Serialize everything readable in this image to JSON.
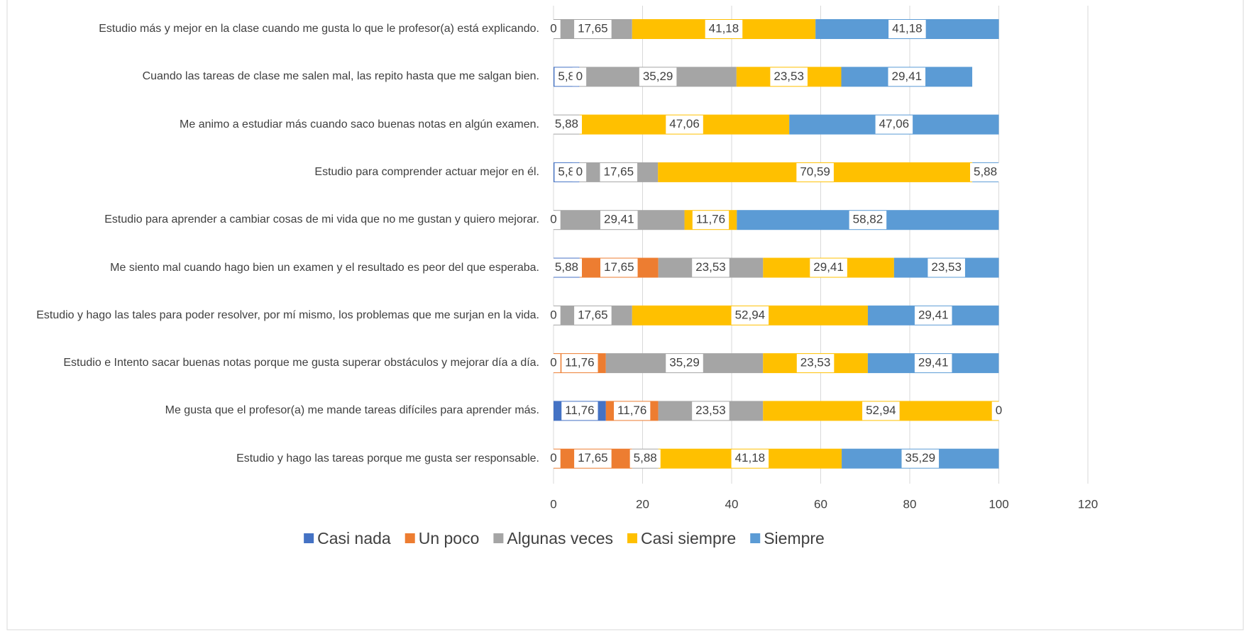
{
  "chart_data": {
    "type": "stacked_barh",
    "categories": [
      "Estudio más y mejor en la clase cuando me gusta lo que le profesor(a) está explicando.",
      "Cuando las tareas de clase me salen mal, las repito hasta que me salgan bien.",
      "Me animo a estudiar más cuando saco buenas notas en algún examen.",
      "Estudio para comprender actuar mejor en él.",
      "Estudio para aprender a cambiar cosas de mi vida que no me gustan y quiero mejorar.",
      "Me siento mal cuando hago bien un examen y el resultado es peor del que esperaba.",
      "Estudio y hago las tales para poder resolver, por mí mismo, los problemas que me surjan en la vida.",
      "Estudio e Intento sacar buenas notas porque me gusta superar obstáculos y mejorar día a día.",
      "Me gusta que el profesor(a) me mande tareas difíciles para aprender más.",
      "Estudio y hago las tareas porque me gusta ser responsable."
    ],
    "series": [
      {
        "name": "Casi nada",
        "color": "#4472c4",
        "values": [
          0,
          5.8,
          null,
          5.8,
          0,
          5.88,
          0,
          0,
          11.76,
          0
        ],
        "value_labels": [
          "0",
          "5,8",
          null,
          "5,8",
          "0",
          "5,88",
          "0",
          "0",
          "11,76",
          "0"
        ]
      },
      {
        "name": "Un poco",
        "color": "#ed7d31",
        "values": [
          null,
          0,
          null,
          0,
          null,
          17.65,
          null,
          11.76,
          11.76,
          17.65
        ],
        "value_labels": [
          null,
          "0",
          null,
          "0",
          null,
          "17,65",
          null,
          "11,76",
          "11,76",
          "17,65"
        ]
      },
      {
        "name": "Algunas veces",
        "color": "#a5a5a5",
        "values": [
          17.65,
          35.29,
          5.88,
          17.65,
          29.41,
          23.53,
          17.65,
          35.29,
          23.53,
          5.88
        ],
        "value_labels": [
          "17,65",
          "35,29",
          "5,88",
          "17,65",
          "29,41",
          "23,53",
          "17,65",
          "35,29",
          "23,53",
          "5,88"
        ]
      },
      {
        "name": "Casi siempre",
        "color": "#ffc000",
        "values": [
          41.18,
          23.53,
          47.06,
          70.59,
          11.76,
          29.41,
          52.94,
          23.53,
          52.94,
          41.18
        ],
        "value_labels": [
          "41,18",
          "23,53",
          "47,06",
          "70,59",
          "11,76",
          "29,41",
          "52,94",
          "23,53",
          "52,94",
          "41,18"
        ]
      },
      {
        "name": "Siempre",
        "color": "#5b9bd5",
        "values": [
          41.18,
          29.41,
          47.06,
          5.88,
          58.82,
          23.53,
          29.41,
          29.41,
          0,
          35.29
        ],
        "value_labels": [
          "41,18",
          "29,41",
          "47,06",
          "5,88",
          "58,82",
          "23,53",
          "29,41",
          "29,41",
          "0",
          "35,29"
        ]
      }
    ],
    "xlim": [
      0,
      120
    ],
    "xticks": [
      0,
      20,
      40,
      60,
      80,
      100,
      120
    ],
    "grid": true,
    "legend": "bottom"
  }
}
